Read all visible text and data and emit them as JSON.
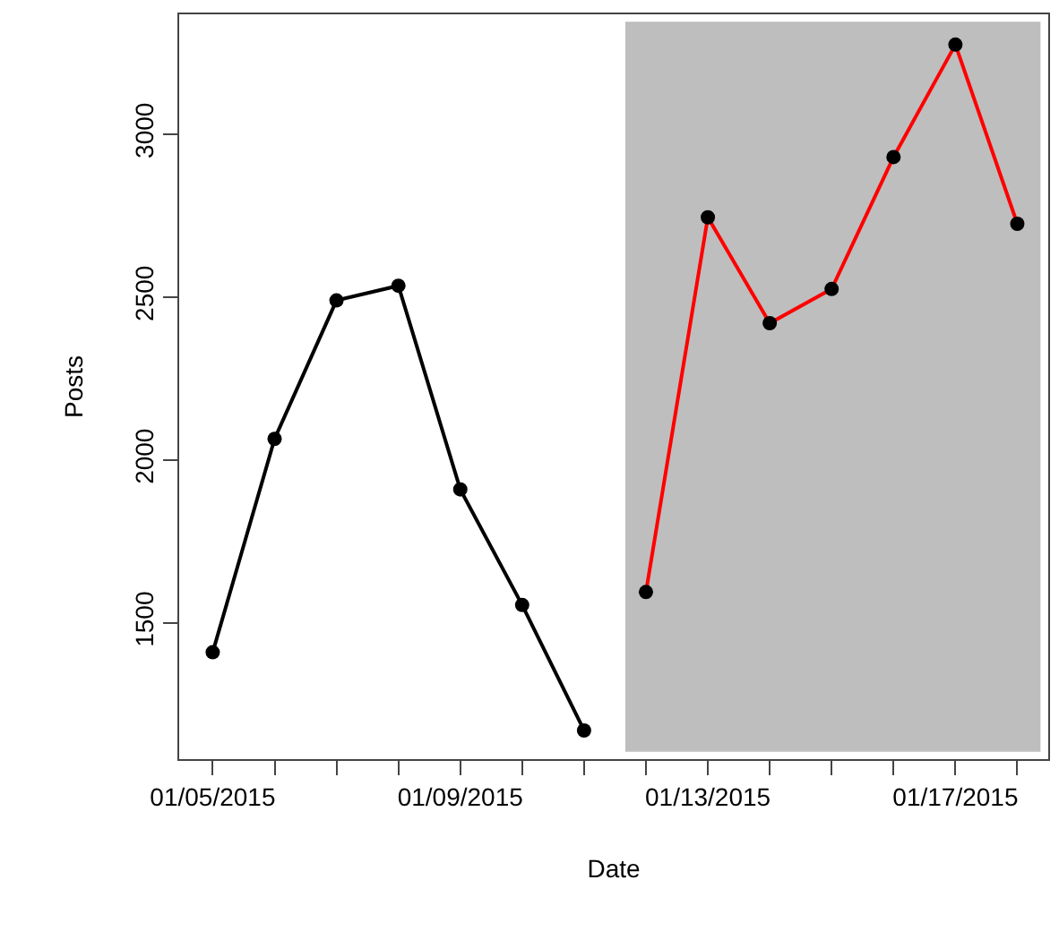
{
  "chart_data": {
    "type": "line",
    "xlabel": "Date",
    "ylabel": "Posts",
    "series": [
      {
        "color": "#000000",
        "x": [
          "2015-01-05",
          "2015-01-06",
          "2015-01-07",
          "2015-01-08",
          "2015-01-09",
          "2015-01-10",
          "2015-01-11"
        ],
        "values": [
          1410,
          2065,
          2490,
          2535,
          1910,
          1555,
          1170
        ]
      },
      {
        "color": "#ff0000",
        "x": [
          "2015-01-12",
          "2015-01-13",
          "2015-01-14",
          "2015-01-15",
          "2015-01-16",
          "2015-01-17",
          "2015-01-18"
        ],
        "values": [
          1595,
          2745,
          2420,
          2525,
          2930,
          3275,
          2725
        ]
      }
    ],
    "xlim": [
      "2015-01-04T11:00",
      "2015-01-18T12:00"
    ],
    "xticks": [
      {
        "value": "2015-01-05",
        "label": "01/05/2015"
      },
      {
        "value": "2015-01-06",
        "label": null
      },
      {
        "value": "2015-01-07",
        "label": null
      },
      {
        "value": "2015-01-08",
        "label": null
      },
      {
        "value": "2015-01-09",
        "label": "01/09/2015"
      },
      {
        "value": "2015-01-10",
        "label": null
      },
      {
        "value": "2015-01-11",
        "label": null
      },
      {
        "value": "2015-01-12",
        "label": null
      },
      {
        "value": "2015-01-13",
        "label": "01/13/2015"
      },
      {
        "value": "2015-01-14",
        "label": null
      },
      {
        "value": "2015-01-15",
        "label": null
      },
      {
        "value": "2015-01-16",
        "label": null
      },
      {
        "value": "2015-01-17",
        "label": "01/17/2015"
      },
      {
        "value": "2015-01-18",
        "label": null
      }
    ],
    "ylim": [
      1082,
      3368
    ],
    "yticks": [
      1500,
      2000,
      2500,
      3000
    ],
    "bands": [
      {
        "axis": "x",
        "from": "2015-01-11T16:00",
        "to": "2015-01-18T09:00",
        "color": "#bebebe"
      }
    ],
    "marker": "circle",
    "line_style": "solid"
  }
}
